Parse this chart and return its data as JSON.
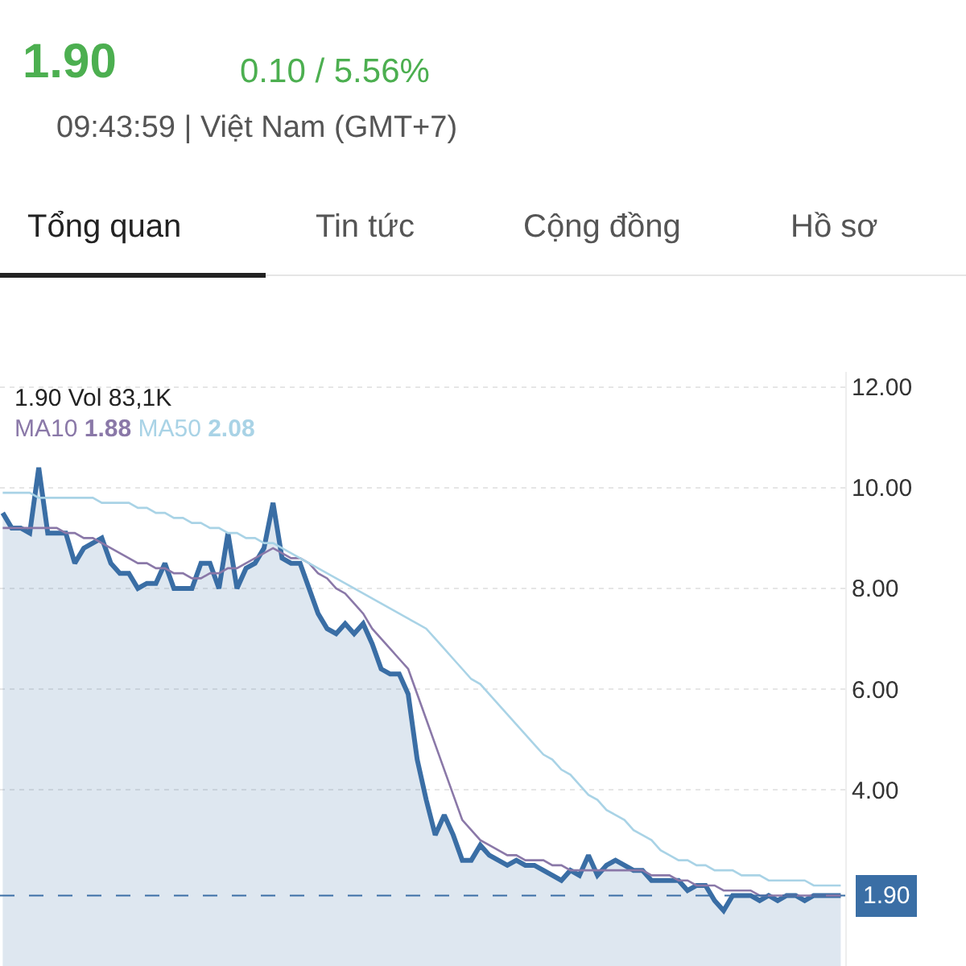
{
  "chart_data": {
    "type": "line",
    "title": "1.90",
    "subtitle": "0.10 / 5.56%",
    "annotations": [
      "09:43:59 | Việt Nam (GMT+7)",
      "Tổng quan",
      "Tin tức",
      "Cộng đồng",
      "Hồ sơ",
      "1.90 Vol 83,1K",
      "1.88",
      "2.08"
    ],
    "categories": [
      null,
      null,
      null,
      null,
      null,
      null,
      null,
      null,
      null,
      null,
      null,
      null,
      null,
      null,
      null,
      null,
      null,
      null,
      null,
      null,
      null,
      null,
      null,
      null,
      null,
      null,
      null,
      null,
      null,
      null,
      null,
      null,
      null,
      null,
      null,
      null,
      null,
      null,
      null,
      null,
      null,
      null,
      null,
      null,
      null,
      null,
      null,
      null,
      null,
      null,
      null,
      null,
      null,
      null,
      null,
      null,
      null,
      null,
      null,
      null,
      null,
      null,
      null,
      null,
      null,
      null,
      null,
      null,
      null,
      null,
      null,
      null,
      null,
      null,
      null,
      null,
      null,
      null,
      null,
      null,
      null,
      null,
      null,
      null,
      null,
      null,
      null,
      null,
      null,
      null,
      null,
      null,
      null,
      null
    ],
    "series": [
      {
        "type": "area",
        "color": "#3a6ea5",
        "values": [
          9.5,
          9.2,
          9.2,
          9.1,
          10.4,
          9.1,
          9.1,
          9.1,
          8.5,
          8.8,
          8.9,
          9.0,
          8.5,
          8.3,
          8.3,
          8.0,
          8.1,
          8.1,
          8.5,
          8.0,
          8.0,
          8.0,
          8.5,
          8.5,
          8.0,
          9.1,
          8.0,
          8.4,
          8.5,
          8.8,
          9.7,
          8.6,
          8.5,
          8.5,
          8.0,
          7.5,
          7.2,
          7.1,
          7.3,
          7.1,
          7.3,
          6.9,
          6.4,
          6.3,
          6.3,
          5.9,
          4.6,
          3.8,
          3.1,
          3.5,
          3.1,
          2.6,
          2.6,
          2.9,
          2.7,
          2.6,
          2.5,
          2.6,
          2.5,
          2.5,
          2.4,
          2.3,
          2.2,
          2.4,
          2.3,
          2.7,
          2.3,
          2.5,
          2.6,
          2.5,
          2.4,
          2.4,
          2.2,
          2.2,
          2.2,
          2.2,
          2.0,
          2.1,
          2.1,
          1.8,
          1.6,
          1.9,
          1.9,
          1.9,
          1.8,
          1.9,
          1.8,
          1.9,
          1.9,
          1.8,
          1.9,
          1.9,
          1.9,
          1.9
        ]
      },
      {
        "name": "MA10",
        "color": "#8a78a8",
        "values": [
          9.2,
          9.2,
          9.2,
          9.2,
          9.2,
          9.2,
          9.2,
          9.1,
          9.1,
          9.0,
          9.0,
          8.9,
          8.8,
          8.7,
          8.6,
          8.5,
          8.5,
          8.4,
          8.4,
          8.3,
          8.3,
          8.2,
          8.2,
          8.3,
          8.3,
          8.4,
          8.4,
          8.5,
          8.6,
          8.7,
          8.8,
          8.7,
          8.6,
          8.6,
          8.5,
          8.3,
          8.2,
          8.0,
          7.9,
          7.7,
          7.5,
          7.2,
          7.0,
          6.8,
          6.6,
          6.4,
          5.9,
          5.4,
          4.9,
          4.4,
          3.9,
          3.4,
          3.2,
          3.0,
          2.9,
          2.8,
          2.7,
          2.7,
          2.6,
          2.6,
          2.6,
          2.5,
          2.5,
          2.4,
          2.4,
          2.4,
          2.4,
          2.4,
          2.4,
          2.4,
          2.4,
          2.4,
          2.3,
          2.3,
          2.3,
          2.2,
          2.2,
          2.1,
          2.1,
          2.1,
          2.0,
          2.0,
          2.0,
          2.0,
          1.9,
          1.9,
          1.9,
          1.9,
          1.9,
          1.9,
          1.9,
          1.9,
          1.9,
          1.9
        ]
      },
      {
        "name": "MA50",
        "color": "#a9d3e6",
        "values": [
          9.9,
          9.9,
          9.9,
          9.9,
          9.8,
          9.8,
          9.8,
          9.8,
          9.8,
          9.8,
          9.8,
          9.7,
          9.7,
          9.7,
          9.7,
          9.6,
          9.6,
          9.5,
          9.5,
          9.4,
          9.4,
          9.3,
          9.3,
          9.2,
          9.2,
          9.1,
          9.1,
          9.0,
          9.0,
          8.9,
          8.9,
          8.8,
          8.7,
          8.6,
          8.5,
          8.4,
          8.3,
          8.2,
          8.1,
          8.0,
          7.9,
          7.8,
          7.7,
          7.6,
          7.5,
          7.4,
          7.3,
          7.2,
          7.0,
          6.8,
          6.6,
          6.4,
          6.2,
          6.1,
          5.9,
          5.7,
          5.5,
          5.3,
          5.1,
          4.9,
          4.7,
          4.6,
          4.4,
          4.3,
          4.1,
          3.9,
          3.8,
          3.6,
          3.5,
          3.4,
          3.2,
          3.1,
          3.0,
          2.8,
          2.7,
          2.6,
          2.6,
          2.5,
          2.5,
          2.4,
          2.4,
          2.4,
          2.3,
          2.3,
          2.3,
          2.2,
          2.2,
          2.2,
          2.2,
          2.2,
          2.1,
          2.1,
          2.1,
          2.1
        ]
      }
    ],
    "ylim": [
      0.5,
      12.3
    ],
    "yticks": [
      {
        "value": 4,
        "label": "4.00"
      },
      {
        "value": 6,
        "label": "6.00"
      },
      {
        "value": 8,
        "label": "8.00"
      },
      {
        "value": 10,
        "label": "10.00"
      },
      {
        "value": 12,
        "label": "12.00"
      }
    ],
    "ref_lines": [
      {
        "axis": "y",
        "value": 1.9,
        "label": "1.90",
        "color": "#3a6ea5",
        "line_style": "dashed"
      }
    ],
    "grid": "y",
    "tick_labels": "y",
    "legend": false,
    "marker": "none"
  }
}
